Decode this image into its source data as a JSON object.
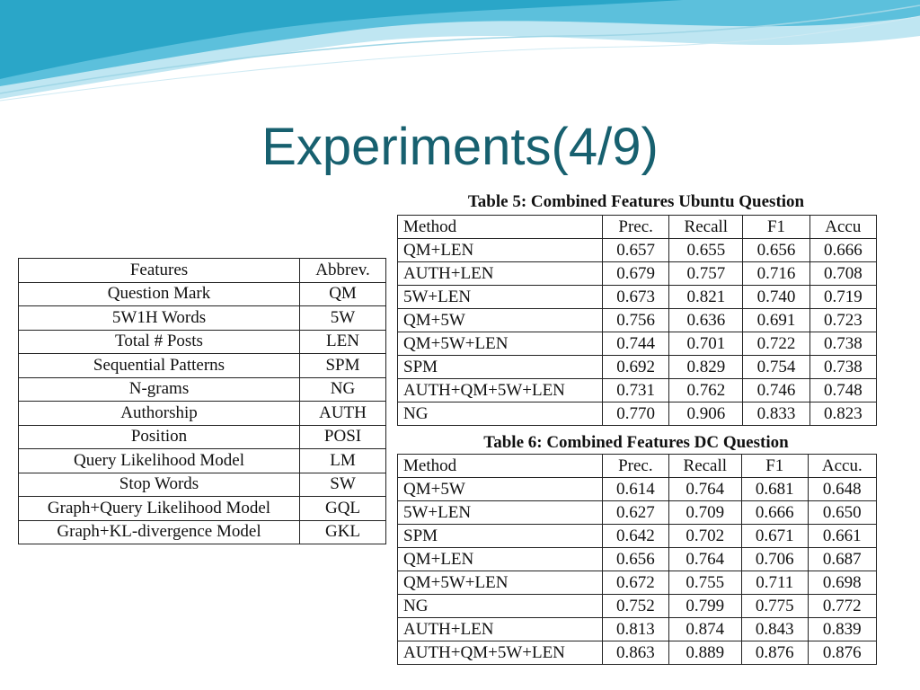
{
  "slide": {
    "title": "Experiments(4/9)"
  },
  "colors": {
    "title": "#17606f",
    "wave_dark": "#2aa6c8",
    "wave_light": "#bfe6f2"
  },
  "features_table": {
    "headers": [
      "Features",
      "Abbrev."
    ],
    "rows": [
      [
        "Question Mark",
        "QM"
      ],
      [
        "5W1H Words",
        "5W"
      ],
      [
        "Total # Posts",
        "LEN"
      ],
      [
        "Sequential Patterns",
        "SPM"
      ],
      [
        "N-grams",
        "NG"
      ],
      [
        "Authorship",
        "AUTH"
      ],
      [
        "Position",
        "POSI"
      ],
      [
        "Query Likelihood Model",
        "LM"
      ],
      [
        "Stop Words",
        "SW"
      ],
      [
        "Graph+Query Likelihood Model",
        "GQL"
      ],
      [
        "Graph+KL-divergence Model",
        "GKL"
      ]
    ]
  },
  "table5": {
    "caption": "Table 5: Combined Features Ubuntu Question",
    "headers": [
      "Method",
      "Prec.",
      "Recall",
      "F1",
      "Accu"
    ],
    "rows": [
      [
        "QM+LEN",
        "0.657",
        "0.655",
        "0.656",
        "0.666"
      ],
      [
        "AUTH+LEN",
        "0.679",
        "0.757",
        "0.716",
        "0.708"
      ],
      [
        "5W+LEN",
        "0.673",
        "0.821",
        "0.740",
        "0.719"
      ],
      [
        "QM+5W",
        "0.756",
        "0.636",
        "0.691",
        "0.723"
      ],
      [
        "QM+5W+LEN",
        "0.744",
        "0.701",
        "0.722",
        "0.738"
      ],
      [
        "SPM",
        "0.692",
        "0.829",
        "0.754",
        "0.738"
      ],
      [
        "AUTH+QM+5W+LEN",
        "0.731",
        "0.762",
        "0.746",
        "0.748"
      ],
      [
        "NG",
        "0.770",
        "0.906",
        "0.833",
        "0.823"
      ]
    ]
  },
  "table6": {
    "caption": "Table 6: Combined Features DC Question",
    "headers": [
      "Method",
      "Prec.",
      "Recall",
      "F1",
      "Accu."
    ],
    "rows": [
      [
        "QM+5W",
        "0.614",
        "0.764",
        "0.681",
        "0.648"
      ],
      [
        "5W+LEN",
        "0.627",
        "0.709",
        "0.666",
        "0.650"
      ],
      [
        "SPM",
        "0.642",
        "0.702",
        "0.671",
        "0.661"
      ],
      [
        "QM+LEN",
        "0.656",
        "0.764",
        "0.706",
        "0.687"
      ],
      [
        "QM+5W+LEN",
        "0.672",
        "0.755",
        "0.711",
        "0.698"
      ],
      [
        "NG",
        "0.752",
        "0.799",
        "0.775",
        "0.772"
      ],
      [
        "AUTH+LEN",
        "0.813",
        "0.874",
        "0.843",
        "0.839"
      ],
      [
        "AUTH+QM+5W+LEN",
        "0.863",
        "0.889",
        "0.876",
        "0.876"
      ]
    ]
  }
}
